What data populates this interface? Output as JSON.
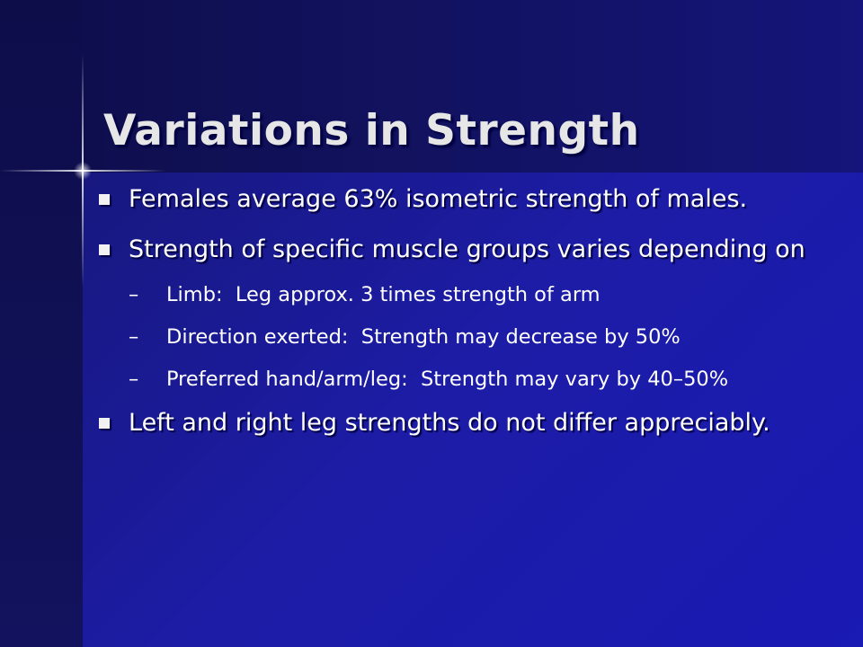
{
  "title": "Variations in Strength",
  "bullets": [
    {
      "text": "Females average 63% isometric strength of males."
    },
    {
      "text": "Strength of specific muscle groups varies depending on",
      "sub_bullets": [
        "Limb:  Leg approx. 3 times strength of arm",
        "Direction exerted:  Strength may decrease by 50%",
        "Preferred hand/arm/leg:  Strength may vary by 40–50%"
      ]
    },
    {
      "text": "Left and right leg strengths do not differ appreciably."
    }
  ]
}
